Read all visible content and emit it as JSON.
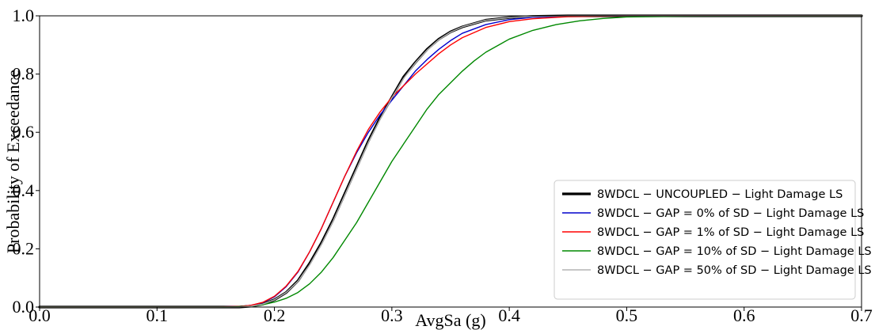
{
  "chart_data": {
    "type": "line",
    "title": "",
    "xlabel": "AvgSa (g)",
    "ylabel": "Probability of Exceedance",
    "xlim": [
      0.0,
      0.7
    ],
    "ylim": [
      0.0,
      1.0
    ],
    "xticks": [
      "0.0",
      "0.1",
      "0.2",
      "0.3",
      "0.4",
      "0.5",
      "0.6",
      "0.7"
    ],
    "yticks": [
      "0.0",
      "0.2",
      "0.4",
      "0.6",
      "0.8",
      "1.0"
    ],
    "grid": false,
    "legend_position": "lower-right",
    "series": [
      {
        "name": "8WDCL − UNCOUPLED − Light Damage LS",
        "color": "#000000",
        "x": [
          0.0,
          0.15,
          0.17,
          0.18,
          0.19,
          0.2,
          0.21,
          0.22,
          0.23,
          0.24,
          0.25,
          0.26,
          0.27,
          0.28,
          0.29,
          0.3,
          0.31,
          0.32,
          0.33,
          0.34,
          0.35,
          0.36,
          0.38,
          0.4,
          0.42,
          0.45,
          0.5,
          0.7
        ],
        "y": [
          0.0,
          0.0,
          0.0,
          0.003,
          0.01,
          0.025,
          0.05,
          0.09,
          0.15,
          0.22,
          0.3,
          0.39,
          0.48,
          0.57,
          0.65,
          0.72,
          0.79,
          0.84,
          0.885,
          0.92,
          0.945,
          0.962,
          0.985,
          0.994,
          0.998,
          1.0,
          1.0,
          1.0
        ]
      },
      {
        "name": "8WDCL − GAP = 0% of SD − Light Damage LS",
        "color": "#0000cc",
        "x": [
          0.0,
          0.15,
          0.17,
          0.18,
          0.19,
          0.2,
          0.21,
          0.22,
          0.23,
          0.24,
          0.25,
          0.26,
          0.27,
          0.28,
          0.29,
          0.3,
          0.31,
          0.32,
          0.33,
          0.34,
          0.35,
          0.36,
          0.38,
          0.4,
          0.42,
          0.45,
          0.5,
          0.7
        ],
        "y": [
          0.0,
          0.0,
          0.002,
          0.006,
          0.015,
          0.035,
          0.07,
          0.12,
          0.19,
          0.27,
          0.36,
          0.45,
          0.53,
          0.6,
          0.66,
          0.71,
          0.76,
          0.81,
          0.85,
          0.885,
          0.915,
          0.94,
          0.97,
          0.987,
          0.995,
          0.999,
          1.0,
          1.0
        ]
      },
      {
        "name": "8WDCL − GAP = 1% of SD − Light Damage LS",
        "color": "#ff0000",
        "x": [
          0.0,
          0.15,
          0.17,
          0.18,
          0.19,
          0.2,
          0.21,
          0.22,
          0.23,
          0.24,
          0.25,
          0.26,
          0.27,
          0.28,
          0.29,
          0.3,
          0.31,
          0.32,
          0.33,
          0.34,
          0.35,
          0.36,
          0.38,
          0.4,
          0.42,
          0.45,
          0.5,
          0.7
        ],
        "y": [
          0.0,
          0.0,
          0.002,
          0.006,
          0.016,
          0.037,
          0.072,
          0.122,
          0.19,
          0.27,
          0.36,
          0.45,
          0.535,
          0.61,
          0.67,
          0.72,
          0.76,
          0.8,
          0.835,
          0.87,
          0.9,
          0.925,
          0.96,
          0.98,
          0.99,
          0.997,
          1.0,
          1.0
        ]
      },
      {
        "name": "8WDCL − GAP = 10% of SD − Light Damage LS",
        "color": "#008800",
        "x": [
          0.0,
          0.16,
          0.18,
          0.19,
          0.2,
          0.21,
          0.22,
          0.23,
          0.24,
          0.25,
          0.26,
          0.27,
          0.28,
          0.29,
          0.3,
          0.31,
          0.32,
          0.33,
          0.34,
          0.35,
          0.36,
          0.37,
          0.38,
          0.4,
          0.42,
          0.44,
          0.46,
          0.48,
          0.5,
          0.55,
          0.7
        ],
        "y": [
          0.0,
          0.0,
          0.003,
          0.008,
          0.017,
          0.03,
          0.05,
          0.08,
          0.12,
          0.17,
          0.23,
          0.29,
          0.36,
          0.43,
          0.5,
          0.56,
          0.62,
          0.68,
          0.73,
          0.77,
          0.81,
          0.845,
          0.875,
          0.92,
          0.95,
          0.97,
          0.983,
          0.991,
          0.996,
          0.999,
          1.0
        ]
      },
      {
        "name": "8WDCL − GAP = 50% of SD − Light Damage LS",
        "color": "#b4b4b4",
        "x": [
          0.0,
          0.15,
          0.17,
          0.18,
          0.19,
          0.2,
          0.21,
          0.22,
          0.23,
          0.24,
          0.25,
          0.26,
          0.27,
          0.28,
          0.29,
          0.3,
          0.31,
          0.32,
          0.33,
          0.34,
          0.35,
          0.36,
          0.38,
          0.4,
          0.42,
          0.45,
          0.5,
          0.7
        ],
        "y": [
          0.0,
          0.0,
          0.0,
          0.003,
          0.01,
          0.025,
          0.05,
          0.088,
          0.145,
          0.215,
          0.295,
          0.385,
          0.475,
          0.565,
          0.645,
          0.718,
          0.785,
          0.838,
          0.882,
          0.918,
          0.944,
          0.962,
          0.985,
          0.994,
          0.998,
          1.0,
          1.0,
          1.0
        ]
      }
    ]
  }
}
